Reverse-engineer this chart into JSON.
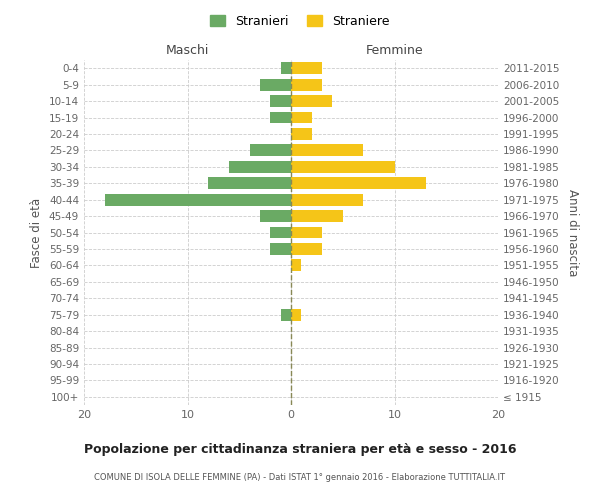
{
  "age_groups": [
    "100+",
    "95-99",
    "90-94",
    "85-89",
    "80-84",
    "75-79",
    "70-74",
    "65-69",
    "60-64",
    "55-59",
    "50-54",
    "45-49",
    "40-44",
    "35-39",
    "30-34",
    "25-29",
    "20-24",
    "15-19",
    "10-14",
    "5-9",
    "0-4"
  ],
  "birth_years": [
    "≤ 1915",
    "1916-1920",
    "1921-1925",
    "1926-1930",
    "1931-1935",
    "1936-1940",
    "1941-1945",
    "1946-1950",
    "1951-1955",
    "1956-1960",
    "1961-1965",
    "1966-1970",
    "1971-1975",
    "1976-1980",
    "1981-1985",
    "1986-1990",
    "1991-1995",
    "1996-2000",
    "2001-2005",
    "2006-2010",
    "2011-2015"
  ],
  "males": [
    0,
    0,
    0,
    0,
    0,
    1,
    0,
    0,
    0,
    2,
    2,
    3,
    18,
    8,
    6,
    4,
    0,
    2,
    2,
    3,
    1
  ],
  "females": [
    0,
    0,
    0,
    0,
    0,
    1,
    0,
    0,
    1,
    3,
    3,
    5,
    7,
    13,
    10,
    7,
    2,
    2,
    4,
    3,
    3
  ],
  "male_color": "#6aaa64",
  "female_color": "#f5c518",
  "grid_color": "#cccccc",
  "dashed_line_color": "#888855",
  "xlim": 20,
  "title": "Popolazione per cittadinanza straniera per età e sesso - 2016",
  "subtitle": "COMUNE DI ISOLA DELLE FEMMINE (PA) - Dati ISTAT 1° gennaio 2016 - Elaborazione TUTTITALIA.IT",
  "ylabel_left": "Fasce di età",
  "ylabel_right": "Anni di nascita",
  "legend_male": "Stranieri",
  "legend_female": "Straniere",
  "maschi_label": "Maschi",
  "femmine_label": "Femmine",
  "bg_color": "#ffffff"
}
